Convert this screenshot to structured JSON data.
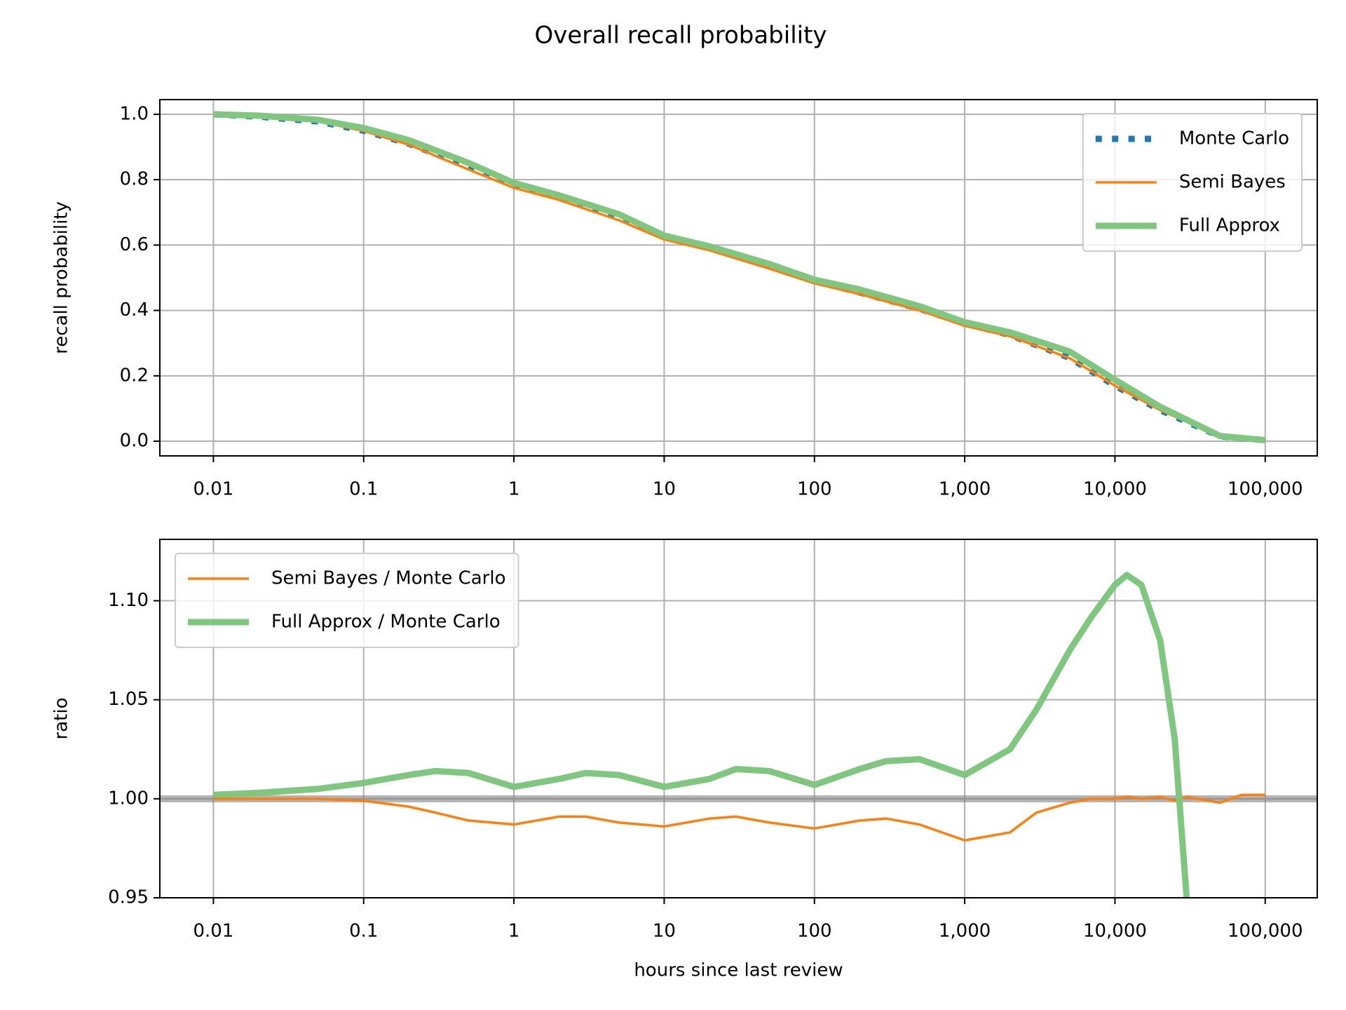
{
  "title": "Overall recall probability",
  "chart_data": [
    {
      "type": "line",
      "xscale": "log",
      "grid": true,
      "legend": "upper right",
      "ylabel": "recall probability",
      "xlim": [
        0.0044,
        222000
      ],
      "ylim": [
        -0.045,
        1.045
      ],
      "xticks": [
        0.01,
        0.1,
        1,
        10,
        100,
        {
          "value": 1000,
          "label": "1,000"
        },
        {
          "value": 10000,
          "label": "10,000"
        },
        {
          "value": 100000,
          "label": "100,000"
        }
      ],
      "yticks": [
        {
          "value": 0,
          "label": "0.0"
        },
        0.2,
        0.4,
        0.6,
        0.8,
        {
          "value": 1,
          "label": "1.0"
        }
      ],
      "x": [
        0.01,
        0.02,
        0.05,
        0.1,
        0.2,
        0.5,
        1,
        2,
        5,
        10,
        20,
        50,
        100,
        200,
        500,
        1000,
        2000,
        5000,
        10000,
        20000,
        50000,
        100000
      ],
      "series": [
        {
          "name": "Monte Carlo",
          "color": "#1f77b4",
          "linestyle": "dotted",
          "linewidth": 9,
          "values": [
            1.0,
            0.993,
            0.978,
            0.95,
            0.91,
            0.84,
            0.785,
            0.745,
            0.685,
            0.625,
            0.59,
            0.535,
            0.49,
            0.455,
            0.405,
            0.36,
            0.325,
            0.255,
            0.17,
            0.095,
            0.015,
            0.003
          ]
        },
        {
          "name": "Semi Bayes",
          "color": "#ff7f0e",
          "linestyle": "solid",
          "linewidth": 3.5,
          "values": [
            1.0,
            0.993,
            0.978,
            0.949,
            0.907,
            0.831,
            0.775,
            0.738,
            0.676,
            0.617,
            0.584,
            0.528,
            0.483,
            0.45,
            0.4,
            0.353,
            0.321,
            0.254,
            0.17,
            0.095,
            0.015,
            0.003
          ]
        },
        {
          "name": "Full Approx",
          "color": "#7fc67f",
          "linestyle": "solid",
          "linewidth": 9,
          "values": [
            1.0,
            0.996,
            0.983,
            0.958,
            0.921,
            0.851,
            0.79,
            0.752,
            0.694,
            0.629,
            0.596,
            0.542,
            0.494,
            0.464,
            0.413,
            0.364,
            0.333,
            0.274,
            0.188,
            0.105,
            0.016,
            0.003
          ]
        }
      ]
    },
    {
      "type": "line",
      "xscale": "log",
      "grid": true,
      "legend": "upper left",
      "ylabel": "ratio",
      "xlabel": "hours since last review",
      "xlim": [
        0.0044,
        222000
      ],
      "ylim": [
        0.95,
        1.131
      ],
      "xticks": [
        0.01,
        0.1,
        1,
        10,
        100,
        {
          "value": 1000,
          "label": "1,000"
        },
        {
          "value": 10000,
          "label": "10,000"
        },
        {
          "value": 100000,
          "label": "100,000"
        }
      ],
      "yticks": [
        0.95,
        {
          "value": 1,
          "label": "1.00"
        },
        1.05,
        {
          "value": 1.1,
          "label": "1.10"
        }
      ],
      "reference_line": 1,
      "x": [
        0.01,
        0.02,
        0.05,
        0.1,
        0.2,
        0.3,
        0.5,
        1,
        2,
        3,
        5,
        10,
        20,
        30,
        50,
        100,
        200,
        300,
        500,
        1000,
        2000,
        3000,
        5000,
        7000,
        10000,
        12000,
        15000,
        20000,
        25000,
        30000,
        50000,
        70000,
        100000
      ],
      "series": [
        {
          "name": "Semi Bayes / Monte Carlo",
          "color": "#ff7f0e",
          "linestyle": "solid",
          "linewidth": 3.5,
          "values": [
            1.0,
            1.0,
            1.0,
            0.999,
            0.996,
            0.993,
            0.989,
            0.987,
            0.991,
            0.991,
            0.988,
            0.986,
            0.99,
            0.991,
            0.988,
            0.985,
            0.989,
            0.99,
            0.987,
            0.979,
            0.983,
            0.993,
            0.998,
            1.0,
            1.0,
            1.001,
            1.0,
            1.001,
            0.999,
            1.001,
            0.998,
            1.002,
            1.002
          ]
        },
        {
          "name": "Full Approx / Monte Carlo",
          "color": "#7fc67f",
          "linestyle": "solid",
          "linewidth": 9,
          "values": [
            1.002,
            1.003,
            1.005,
            1.008,
            1.012,
            1.014,
            1.013,
            1.006,
            1.01,
            1.013,
            1.012,
            1.006,
            1.01,
            1.015,
            1.014,
            1.007,
            1.015,
            1.019,
            1.02,
            1.012,
            1.025,
            1.045,
            1.075,
            1.092,
            1.108,
            1.113,
            1.108,
            1.08,
            1.03,
            0.95,
            null,
            null,
            null
          ]
        }
      ]
    }
  ]
}
